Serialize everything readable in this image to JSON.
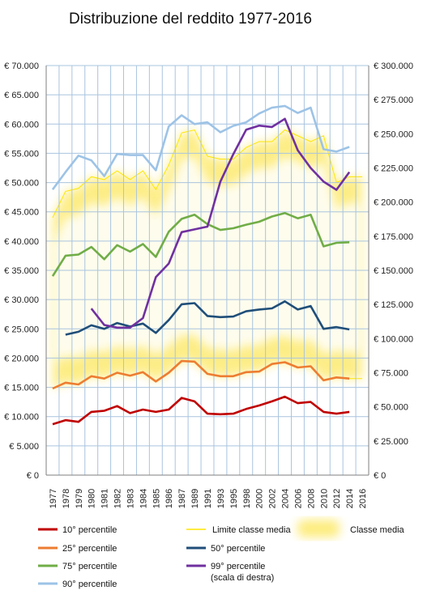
{
  "chart_data": {
    "type": "line",
    "title": "Distribuzione del reddito 1977-2016",
    "x": [
      1977,
      1978,
      1979,
      1980,
      1981,
      1982,
      1983,
      1984,
      1985,
      1986,
      1987,
      1989,
      1991,
      1993,
      1995,
      1998,
      2000,
      2002,
      2004,
      2006,
      2008,
      2010,
      2012,
      2014,
      2016
    ],
    "xtick_labels": [
      "1977",
      "1978",
      "1979",
      "1980",
      "1981",
      "1982",
      "1983",
      "1984",
      "1985",
      "1986",
      "1987",
      "1989",
      "1991",
      "1993",
      "1995",
      "1998",
      "2000",
      "2002",
      "2004",
      "2006",
      "2008",
      "2010",
      "2012",
      "2014",
      "2016"
    ],
    "y_left": {
      "ylim": [
        0,
        70000
      ],
      "ticks": [
        0,
        5000,
        10000,
        15000,
        20000,
        25000,
        30000,
        35000,
        40000,
        45000,
        50000,
        55000,
        60000,
        65000,
        70000
      ],
      "tick_labels": [
        "€ 0",
        "€ 5.000",
        "€ 10.000",
        "€ 15.000",
        "€ 20.000",
        "€ 25.000",
        "€ 30.000",
        "€ 35.000",
        "€ 40.000",
        "€ 45.000",
        "€ 50.000",
        "€ 55.000",
        "€ 60.000",
        "€ 65.000",
        "€ 70.000"
      ]
    },
    "y_right": {
      "ylim": [
        0,
        300000
      ],
      "ticks": [
        0,
        25000,
        50000,
        75000,
        100000,
        125000,
        150000,
        175000,
        200000,
        225000,
        250000,
        275000,
        300000
      ],
      "tick_labels": [
        "€ 0",
        "€ 25.000",
        "€ 50.000",
        "€ 75.000",
        "€ 100.000",
        "€ 125.000",
        "€ 150.000",
        "€ 175.000",
        "€ 200.000",
        "€ 225.000",
        "€ 250.000",
        "€ 275.000",
        "€ 300.000"
      ]
    },
    "grid": true,
    "legend_position": "bottom",
    "middle_class_band": {
      "lower": [
        14800,
        15800,
        15600,
        16900,
        16500,
        17500,
        17000,
        17600,
        16100,
        17500,
        19500,
        19400,
        17300,
        16900,
        16900,
        17600,
        17700,
        19000,
        19200,
        18400,
        18600,
        16300,
        16700,
        16500,
        16500
      ],
      "upper": [
        44000,
        48500,
        49000,
        51000,
        50500,
        52000,
        50500,
        52000,
        48800,
        53000,
        58500,
        59000,
        54500,
        54000,
        54000,
        56000,
        57000,
        57000,
        59000,
        58000,
        57000,
        58000,
        50000,
        51000,
        51000
      ]
    },
    "series": [
      {
        "name": "10° percentile",
        "color": "#c00000",
        "axis": "left",
        "values": [
          8700,
          9400,
          9100,
          10800,
          11000,
          11800,
          10600,
          11200,
          10800,
          11200,
          13200,
          12600,
          10500,
          10400,
          10500,
          11300,
          11900,
          12600,
          13400,
          12300,
          12500,
          10800,
          10500,
          10800,
          null
        ]
      },
      {
        "name": "25° percentile",
        "color": "#ed7d31",
        "axis": "left",
        "values": [
          14800,
          15800,
          15500,
          16900,
          16500,
          17500,
          17000,
          17600,
          16000,
          17500,
          19500,
          19400,
          17300,
          16900,
          16900,
          17600,
          17700,
          19000,
          19300,
          18400,
          18600,
          16200,
          16700,
          16500,
          null
        ]
      },
      {
        "name": "50° percentile",
        "color": "#1f4e79",
        "axis": "left",
        "values": [
          null,
          24000,
          24500,
          25600,
          25000,
          26000,
          25400,
          25900,
          24300,
          26500,
          29200,
          29400,
          27200,
          27000,
          27100,
          28000,
          28300,
          28500,
          29700,
          28300,
          28900,
          25000,
          25300,
          24900,
          null
        ]
      },
      {
        "name": "75° percentile",
        "color": "#70ad47",
        "axis": "left",
        "values": [
          34000,
          37500,
          37700,
          39000,
          36900,
          39300,
          38200,
          39500,
          37300,
          41600,
          43800,
          44500,
          42900,
          41900,
          42200,
          42800,
          43300,
          44200,
          44800,
          43900,
          44500,
          39100,
          39700,
          39800,
          null
        ]
      },
      {
        "name": "90° percentile",
        "color": "#9dc3e6",
        "axis": "left",
        "values": [
          48800,
          51800,
          54600,
          53800,
          51100,
          54900,
          54700,
          54700,
          52100,
          59600,
          61500,
          60000,
          60300,
          58600,
          59700,
          60300,
          61800,
          62800,
          63100,
          61900,
          62800,
          55700,
          55300,
          56100,
          null
        ]
      },
      {
        "name": "99° percentile",
        "name_line2": "(scala di destra)",
        "color": "#7030a0",
        "axis": "right",
        "values": [
          null,
          null,
          null,
          122000,
          110000,
          108000,
          108000,
          115000,
          145000,
          155000,
          178000,
          180000,
          182000,
          215000,
          235000,
          253000,
          256000,
          255000,
          261000,
          238000,
          225000,
          215000,
          209000,
          222000,
          null
        ]
      }
    ],
    "legend_extra": [
      "Limite classe media",
      "Classe media"
    ]
  }
}
